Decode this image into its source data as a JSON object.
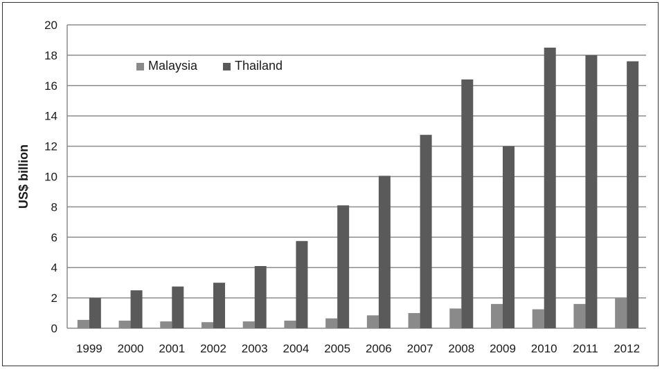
{
  "chart_data": {
    "type": "bar",
    "title": "",
    "xlabel": "",
    "ylabel": "US$ billion",
    "ylim": [
      0,
      20
    ],
    "yticks": [
      "0",
      "2",
      "4",
      "6",
      "8",
      "10",
      "12",
      "14",
      "16",
      "18",
      "20"
    ],
    "grid": true,
    "legend_position": "top-left",
    "categories": [
      "1999",
      "2000",
      "2001",
      "2002",
      "2003",
      "2004",
      "2005",
      "2006",
      "2007",
      "2008",
      "2009",
      "2010",
      "2011",
      "2012"
    ],
    "series": [
      {
        "name": "Malaysia",
        "color": "#8a8a8a",
        "values": [
          0.55,
          0.5,
          0.45,
          0.4,
          0.45,
          0.5,
          0.65,
          0.85,
          1.0,
          1.3,
          1.6,
          1.25,
          1.6,
          2.0
        ]
      },
      {
        "name": "Thailand",
        "color": "#5a5a5a",
        "values": [
          2.0,
          2.5,
          2.75,
          3.0,
          4.1,
          5.75,
          8.1,
          10.05,
          12.75,
          16.4,
          12.0,
          18.5,
          18.0,
          17.6
        ]
      }
    ]
  }
}
